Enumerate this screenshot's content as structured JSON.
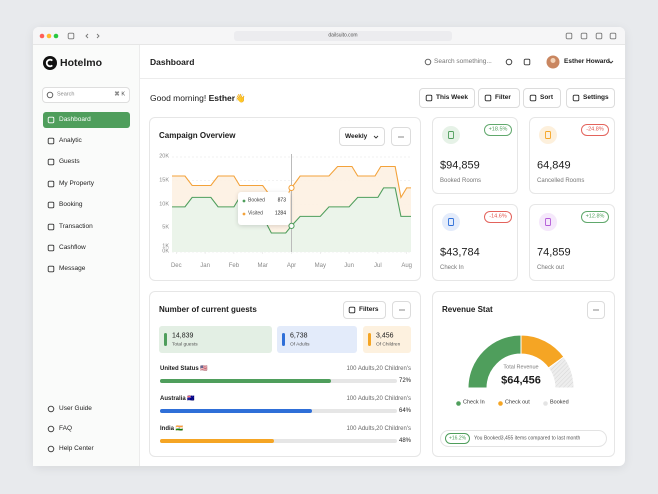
{
  "browser": {
    "url": "dailsuito.com"
  },
  "sidebar": {
    "brand": "Hotelmo",
    "search": "Search",
    "shortcut": "⌘ K",
    "nav": [
      "Dashboard",
      "Analytic",
      "Guests",
      "My Property",
      "Booking",
      "Transaction",
      "Cashflow",
      "Message"
    ],
    "footer_nav": [
      "User Guide",
      "FAQ",
      "Help Center"
    ]
  },
  "header": {
    "title": "Dashboard",
    "search": "Search something...",
    "user": "Esther Howard"
  },
  "greeting": {
    "text": "Good morning!",
    "name": "Esther👋"
  },
  "toolbar": [
    "This Week",
    "Filter",
    "Sort",
    "Settings"
  ],
  "campaign": {
    "title": "Campaign Overview",
    "period": "Weekly",
    "tooltip": [
      {
        "value": 873
      },
      {
        "value": 1284
      }
    ]
  },
  "chart_data": [
    {
      "type": "line",
      "xlim": [
        -0.15,
        8.15
      ],
      "xticks": [
        {
          "value": 0,
          "label": "Dec"
        },
        {
          "value": 1,
          "label": "Jan"
        },
        {
          "value": 2,
          "label": "Feb"
        },
        {
          "value": 3,
          "label": "Mar"
        },
        {
          "value": 4,
          "label": "Apr"
        },
        {
          "value": 5,
          "label": "May"
        },
        {
          "value": 6,
          "label": "Jun"
        },
        {
          "value": 7,
          "label": "Jul"
        },
        {
          "value": 8,
          "label": "Aug"
        }
      ],
      "ylim": [
        0,
        20000
      ],
      "yticks": [
        {
          "value": 20000,
          "label": "20K"
        },
        {
          "value": 15000,
          "label": "15K"
        },
        {
          "value": 10000,
          "label": "10K"
        },
        {
          "value": 5000,
          "label": "5K"
        },
        {
          "value": 1000,
          "label": "1K"
        },
        {
          "value": 0,
          "label": "0K"
        }
      ],
      "grid": true,
      "series": [
        {
          "name": "Booked",
          "color": "#4f9e5c",
          "x": [
            -0.15,
            0.3,
            0.55,
            1.2,
            1.45,
            2.0,
            2.2,
            2.6,
            2.8,
            3.0,
            3.3,
            3.8,
            4.0,
            4.3,
            5.0,
            5.3,
            6.0,
            6.3,
            7.0,
            7.2,
            7.6,
            7.8,
            8.15
          ],
          "values": [
            9500,
            9500,
            11500,
            11500,
            9500,
            9500,
            11500,
            11500,
            7500,
            7500,
            4000,
            4000,
            5500,
            7500,
            7500,
            9500,
            9500,
            11500,
            11500,
            13500,
            13500,
            7500,
            7500
          ]
        },
        {
          "name": "Visited",
          "color": "#f3a23a",
          "x": [
            -0.15,
            0.3,
            0.55,
            1.2,
            1.45,
            2.0,
            2.2,
            3.0,
            3.3,
            3.8,
            4.0,
            4.3,
            5.3,
            5.6,
            6.1,
            6.3,
            6.9,
            7.1,
            7.6,
            7.8,
            8.0,
            8.15
          ],
          "values": [
            16000,
            16000,
            14000,
            14000,
            16000,
            16000,
            14000,
            14000,
            11500,
            11500,
            13500,
            16000,
            16000,
            18000,
            18000,
            16000,
            16000,
            18000,
            18000,
            11500,
            13500,
            13500
          ]
        }
      ]
    },
    {
      "type": "gauge",
      "categories": [
        "Check In",
        "Check out",
        "Booked"
      ],
      "values": [
        50,
        30,
        20
      ],
      "colors": [
        "#4f9e5c",
        "#f5a524",
        "#e4e4e4"
      ]
    }
  ],
  "stats": [
    {
      "value": "$94,859",
      "label": "Booked Rooms",
      "change": "+18.5%",
      "color": "#4f9e5c",
      "badge_color": "#4f9e5c"
    },
    {
      "value": "64,849",
      "label": "Cancelled Rooms",
      "change": "-24.8%",
      "color": "#f5a524",
      "badge_color": "#e0524a"
    },
    {
      "value": "$43,784",
      "label": "Check In",
      "change": "-14.6%",
      "color": "#2f6fd8",
      "badge_color": "#e0524a"
    },
    {
      "value": "74,859",
      "label": "Check out",
      "change": "+12.8%",
      "color": "#b35ad8",
      "badge_color": "#4f9e5c"
    }
  ],
  "guests": {
    "title": "Number of current guests",
    "filter": "Filters",
    "totals": [
      {
        "value": "14,839",
        "label": "Total guests",
        "color": "#4f9e5c"
      },
      {
        "value": "6,738",
        "label": "Of Adults",
        "color": "#2f6fd8"
      },
      {
        "value": "3,456",
        "label": "Of Children",
        "color": "#f5a524"
      }
    ],
    "rows": [
      {
        "country": "United Status 🇺🇸",
        "detail": "100 Adults,20 Children's",
        "value": 72,
        "value_label": "72%",
        "color": "#4f9e5c"
      },
      {
        "country": "Australia 🇦🇺",
        "detail": "100 Adults,20 Children's",
        "value": 64,
        "value_label": "64%",
        "color": "#2f6fd8"
      },
      {
        "country": "India 🇮🇳",
        "detail": "100 Adults,20 Children's",
        "value": 48,
        "value_label": "48%",
        "color": "#f5a524"
      }
    ]
  },
  "revenue": {
    "title": "Revenue Stat",
    "center_label": "Total Revenue",
    "total": "$64,456",
    "footer_badge": "+16.2%",
    "footer_text": "You Booked3,455 items compared to last month"
  }
}
